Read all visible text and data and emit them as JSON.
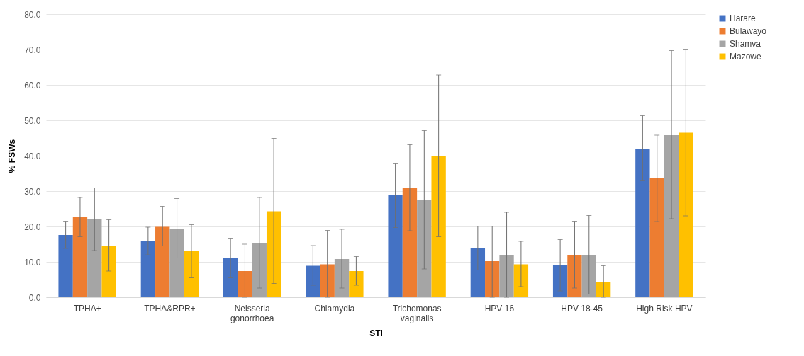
{
  "chart_data": {
    "type": "bar",
    "xlabel": "STI",
    "ylabel": "% FSWs",
    "categories": [
      "TPHA+",
      "TPHA&RPR+",
      "Neisseria gonorrhoea",
      "Chlamydia",
      "Trichomonas vaginalis",
      "HPV 16",
      "HPV 18-45",
      "High Risk HPV"
    ],
    "series": [
      {
        "name": "Harare",
        "color": "#4472c4",
        "values": [
          17.6,
          15.8,
          11.1,
          8.9,
          28.8,
          13.8,
          9.1,
          42.0
        ],
        "errors": [
          [
            13.8,
            21.5
          ],
          [
            12.0,
            19.8
          ],
          [
            5.5,
            16.7
          ],
          [
            3.4,
            14.6
          ],
          [
            19.7,
            37.7
          ],
          [
            7.7,
            20.1
          ],
          [
            1.8,
            16.3
          ],
          [
            32.9,
            51.3
          ]
        ]
      },
      {
        "name": "Bulawayo",
        "color": "#ed7d31",
        "values": [
          22.6,
          19.9,
          7.4,
          9.3,
          30.9,
          10.2,
          12.0,
          33.7
        ],
        "errors": [
          [
            17.1,
            28.2
          ],
          [
            14.5,
            25.7
          ],
          [
            0.0,
            15.0
          ],
          [
            0.0,
            18.9
          ],
          [
            18.8,
            43.1
          ],
          [
            0.0,
            20.1
          ],
          [
            2.6,
            21.5
          ],
          [
            21.4,
            45.8
          ]
        ]
      },
      {
        "name": "Shamva",
        "color": "#a5a5a5",
        "values": [
          22.0,
          19.4,
          15.3,
          10.8,
          27.5,
          12.0,
          12.0,
          45.8
        ],
        "errors": [
          [
            13.2,
            30.9
          ],
          [
            11.1,
            27.9
          ],
          [
            2.6,
            28.2
          ],
          [
            2.6,
            19.2
          ],
          [
            8.0,
            47.1
          ],
          [
            0.0,
            24.0
          ],
          [
            0.9,
            23.1
          ],
          [
            22.2,
            69.7
          ]
        ]
      },
      {
        "name": "Mazowe",
        "color": "#ffc000",
        "values": [
          14.6,
          13.0,
          24.3,
          7.4,
          39.8,
          9.3,
          4.4,
          46.5
        ],
        "errors": [
          [
            7.4,
            21.9
          ],
          [
            5.5,
            20.5
          ],
          [
            3.9,
            44.9
          ],
          [
            3.4,
            11.5
          ],
          [
            17.1,
            62.8
          ],
          [
            3.0,
            15.8
          ],
          [
            0.0,
            8.9
          ],
          [
            23.0,
            70.1
          ]
        ]
      }
    ],
    "ylim": [
      0,
      80
    ],
    "yticks": [
      {
        "value": 0,
        "label": "0.0"
      },
      {
        "value": 10,
        "label": "10.0"
      },
      {
        "value": 20,
        "label": "20.0"
      },
      {
        "value": 30,
        "label": "30.0"
      },
      {
        "value": 40,
        "label": "40.0"
      },
      {
        "value": 50,
        "label": "50.0"
      },
      {
        "value": 60,
        "label": "60.0"
      },
      {
        "value": 70,
        "label": "70.0"
      },
      {
        "value": 80,
        "label": "80.0"
      }
    ],
    "grid": "y",
    "legend": "right"
  }
}
